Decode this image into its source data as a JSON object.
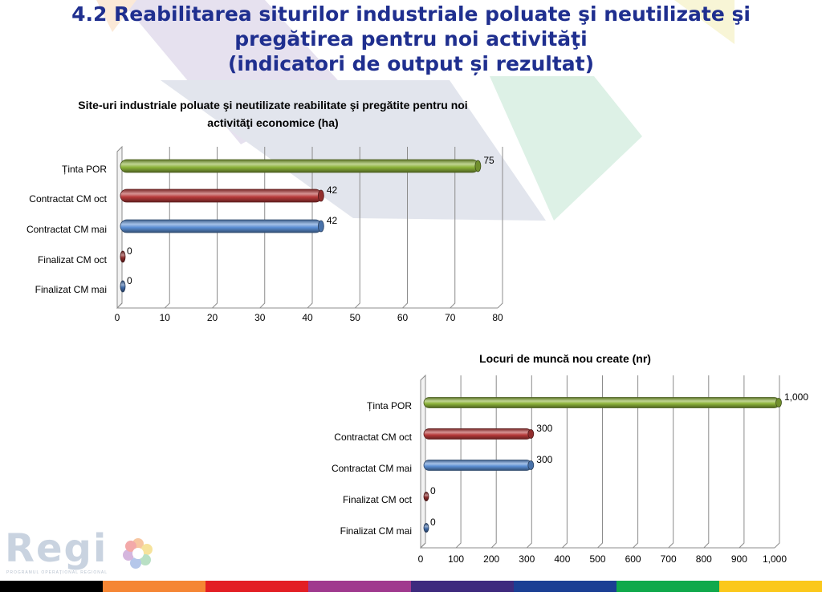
{
  "title": {
    "line1": "4.2 Reabilitarea siturilor industriale poluate şi neutilizate şi",
    "line2": "pregătirea pentru noi activităţi",
    "line3": "(indicatori de output și rezultat)"
  },
  "logo": {
    "text": "Regi",
    "subtext": "PROGRAMUL OPERAŢIONAL REGIONAL",
    "icon": "flower-icon"
  },
  "stripe_colors": [
    "#000000",
    "#f58634",
    "#e31e24",
    "#a0398e",
    "#3e2a7e",
    "#1b3f94",
    "#10a94c",
    "#fbc81b"
  ],
  "chart_data": [
    {
      "type": "bar",
      "orientation": "horizontal",
      "title": [
        "Site-uri industriale poluate şi neutilizate reabilitate şi pregătite pentru noi",
        "activităţi economice (ha)"
      ],
      "categories": [
        "Ținta POR",
        "Contractat CM oct",
        "Contractat CM mai",
        "Finalizat CM oct",
        "Finalizat CM mai"
      ],
      "values": [
        75,
        42,
        42,
        0,
        0
      ],
      "value_labels": [
        "75",
        "42",
        "42",
        "0",
        "0"
      ],
      "bar_colors": [
        "#8db33a",
        "#b73a3a",
        "#5b8fd4",
        "#8a2a2a",
        "#3f6aa8"
      ],
      "xlim": [
        0,
        80
      ],
      "ticks": [
        0,
        10,
        20,
        30,
        40,
        50,
        60,
        70,
        80
      ],
      "tick_labels": [
        "0",
        "10",
        "20",
        "30",
        "40",
        "50",
        "60",
        "70",
        "80"
      ],
      "grid": true
    },
    {
      "type": "bar",
      "orientation": "horizontal",
      "title": [
        "Locuri de muncă nou create (nr)"
      ],
      "categories": [
        "Ținta POR",
        "Contractat CM oct",
        "Contractat CM mai",
        "Finalizat CM oct",
        "Finalizat CM mai"
      ],
      "values": [
        1000,
        300,
        300,
        0,
        0
      ],
      "value_labels": [
        "1,000",
        "300",
        "300",
        "0",
        "0"
      ],
      "bar_colors": [
        "#8db33a",
        "#b73a3a",
        "#5b8fd4",
        "#8a2a2a",
        "#3f6aa8"
      ],
      "xlim": [
        0,
        1000
      ],
      "ticks": [
        0,
        100,
        200,
        300,
        400,
        500,
        600,
        700,
        800,
        900,
        1000
      ],
      "tick_labels": [
        "0",
        "100",
        "200",
        "300",
        "400",
        "500",
        "600",
        "700",
        "800",
        "900",
        "1,000"
      ],
      "grid": true
    }
  ]
}
